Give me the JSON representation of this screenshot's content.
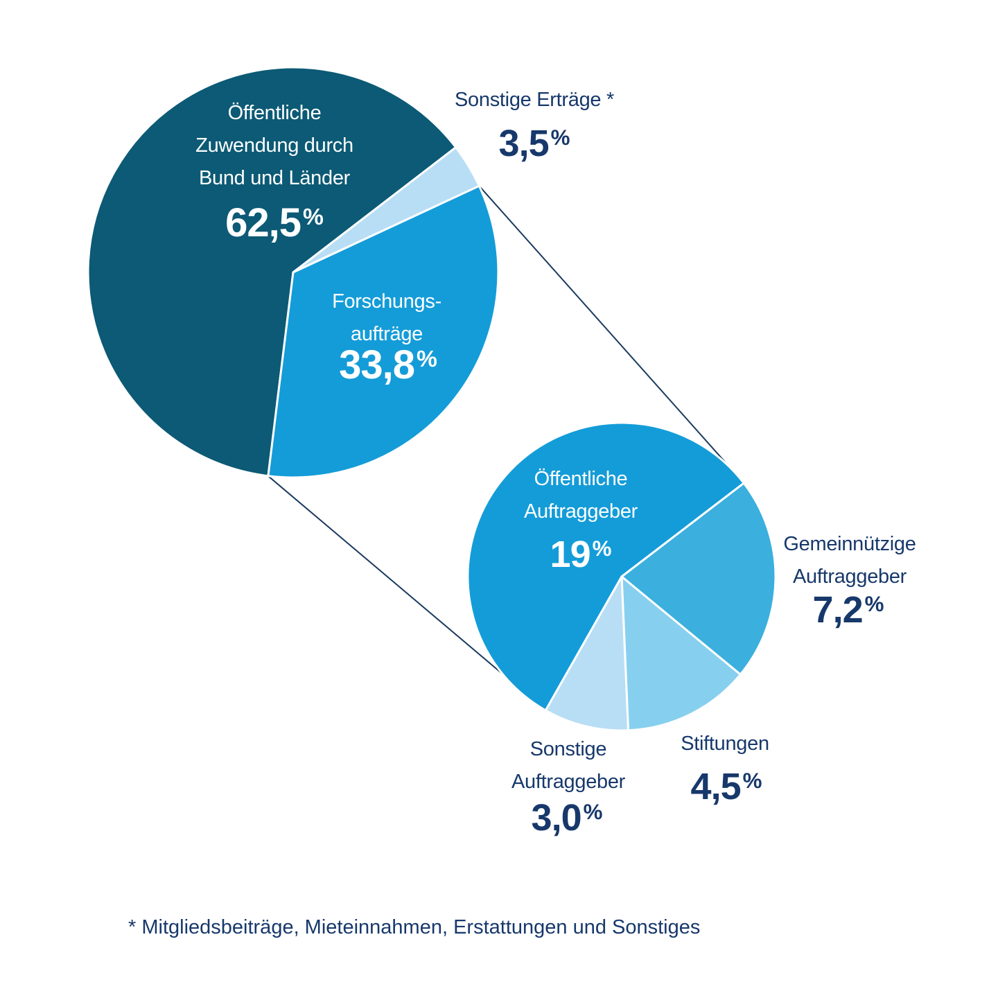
{
  "percent_sign": "%",
  "footnote": "* Mitgliedsbeiträge, Mieteinnahmen, Erstattungen und Sonstiges",
  "colors": {
    "dark_teal": "#0c5a75",
    "blue": "#149cd8",
    "mid_blue": "#3bafdd",
    "sky_blue": "#87cfee",
    "pale_blue": "#b8def5",
    "navy": "#17386b",
    "white": "#ffffff",
    "connector": "#1a3a5e"
  },
  "chart_data": {
    "type": "pie",
    "title": "",
    "description": "Two linked pie charts: revenue shares, with the 33,8% research-contracts slice broken down in a second pie",
    "charts": [
      {
        "name": "ertraege",
        "slices": [
          {
            "id": "oeffentliche-zuwendung",
            "label": "Öffentliche Zuwendung durch Bund und Länder",
            "label_lines": [
              "Öffentliche",
              "Zuwendung durch",
              "Bund und Länder"
            ],
            "value": 62.5,
            "pct": "62,5",
            "color_key": "dark_teal"
          },
          {
            "id": "sonstige-ertraege",
            "label": "Sonstige Erträge *",
            "label_lines": [
              "Sonstige Erträge *"
            ],
            "value": 3.5,
            "pct": "3,5",
            "color_key": "pale_blue"
          },
          {
            "id": "forschungsauftraege",
            "label": "Forschungsaufträge",
            "label_lines": [
              "Forschungs-",
              "aufträge"
            ],
            "value": 33.8,
            "pct": "33,8",
            "color_key": "blue"
          }
        ]
      },
      {
        "name": "forschungsauftraege-breakdown",
        "slices": [
          {
            "id": "oeffentliche-auftraggeber",
            "label": "Öffentliche Auftraggeber",
            "label_lines": [
              "Öffentliche",
              "Auftraggeber"
            ],
            "value": 19,
            "pct": "19",
            "color_key": "blue"
          },
          {
            "id": "gemeinnuetzige-auftraggeber",
            "label": "Gemeinnützige Auftraggeber",
            "label_lines": [
              "Gemeinnützige",
              "Auftraggeber"
            ],
            "value": 7.2,
            "pct": "7,2",
            "color_key": "mid_blue"
          },
          {
            "id": "stiftungen",
            "label": "Stiftungen",
            "label_lines": [
              "Stiftungen"
            ],
            "value": 4.5,
            "pct": "4,5",
            "color_key": "sky_blue"
          },
          {
            "id": "sonstige-auftraggeber",
            "label": "Sonstige Auftraggeber",
            "label_lines": [
              "Sonstige",
              "Auftraggeber"
            ],
            "value": 3.0,
            "pct": "3,0",
            "color_key": "pale_blue"
          }
        ]
      }
    ]
  }
}
